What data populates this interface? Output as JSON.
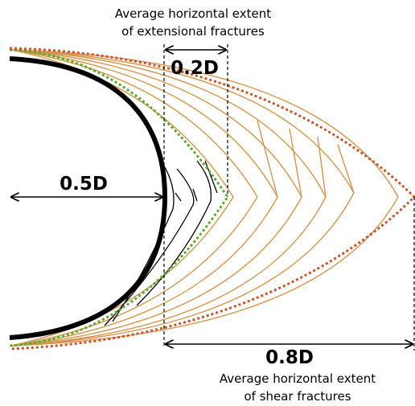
{
  "extensional_label": {
    "line1": "Average horizontal extent",
    "line2": "of extensional fractures"
  },
  "extensional_extent": "0.2D",
  "radius_label": "0.5D",
  "shear_extent": "0.8D",
  "shear_label": {
    "line1": "Average horizontal extent",
    "line2": "of shear fractures"
  }
}
